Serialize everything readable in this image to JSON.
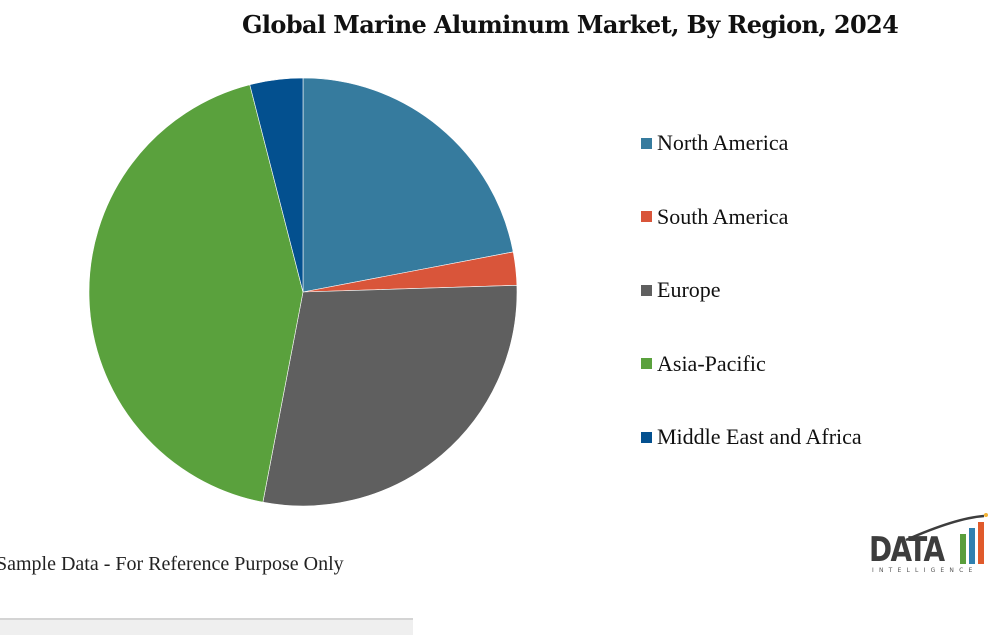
{
  "title": "Global Marine Aluminum Market, By Region, 2024",
  "footnote": "Sample Data - For Reference Purpose Only",
  "logo": {
    "main": "DATA",
    "sub": "INTELLIGENCE",
    "bar_colors": [
      "#5a9e3c",
      "#2f80b0",
      "#e05a2b"
    ]
  },
  "legend": [
    {
      "label": "North America",
      "color": "#367b9e"
    },
    {
      "label": "South America",
      "color": "#d9553a"
    },
    {
      "label": "Europe",
      "color": "#5f5f5f"
    },
    {
      "label": "Asia-Pacific",
      "color": "#5aa13d"
    },
    {
      "label": "Middle East and Africa",
      "color": "#03508f"
    }
  ],
  "chart_data": {
    "type": "pie",
    "title": "Global Marine Aluminum Market, By Region, 2024",
    "categories": [
      "North America",
      "South America",
      "Europe",
      "Asia-Pacific",
      "Middle East and Africa"
    ],
    "values": [
      22,
      2.5,
      28.5,
      43,
      4
    ],
    "unit": "% share (estimated from slice angles)",
    "colors": [
      "#367b9e",
      "#d9553a",
      "#5f5f5f",
      "#5aa13d",
      "#03508f"
    ],
    "start_angle_deg": 0,
    "direction": "clockwise",
    "legend_position": "right",
    "annotations": [
      "Sample Data - For Reference Purpose Only"
    ]
  }
}
